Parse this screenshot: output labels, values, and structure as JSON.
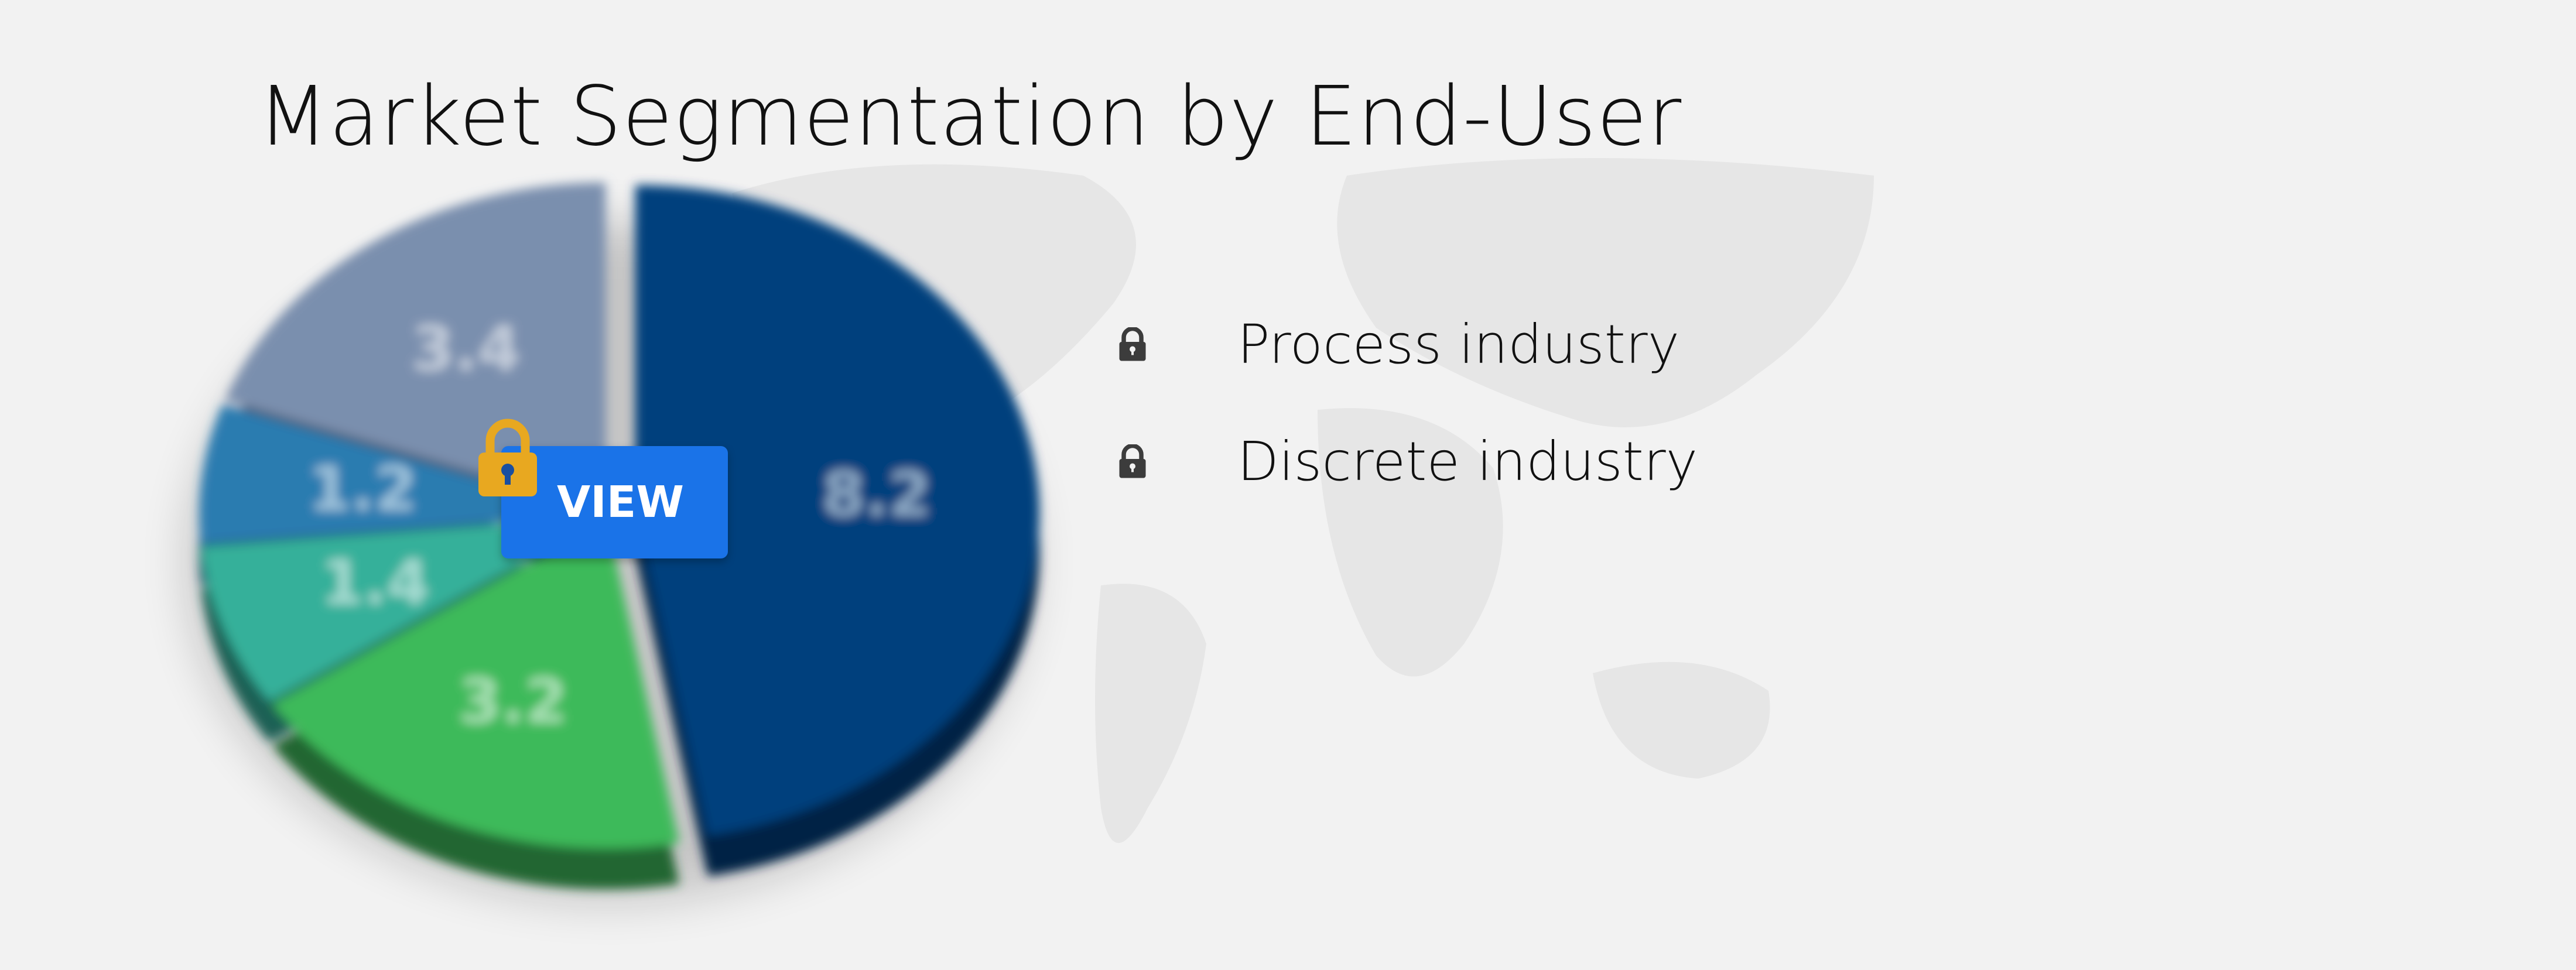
{
  "title": "Market Segmentation by End-User",
  "legend": [
    {
      "label": "Process industry",
      "icon": "lock-icon"
    },
    {
      "label": "Discrete industry",
      "icon": "lock-icon"
    }
  ],
  "view_button": {
    "label": "VIEW",
    "icon": "padlock-icon",
    "lock_color": "#e8a820",
    "button_color": "#1a73e8"
  },
  "chart_data": {
    "type": "pie",
    "style": "3d exploded, blurred",
    "values": [
      8.2,
      3.2,
      1.4,
      1.2,
      3.4
    ],
    "labels": [
      "8.2",
      "3.2",
      "1.4",
      "1.2",
      "3.4"
    ],
    "colors": [
      "#003f7d",
      "#3cba5a",
      "#36b09a",
      "#2a7bb0",
      "#7a8fae"
    ],
    "start": "12 o'clock, clockwise"
  }
}
